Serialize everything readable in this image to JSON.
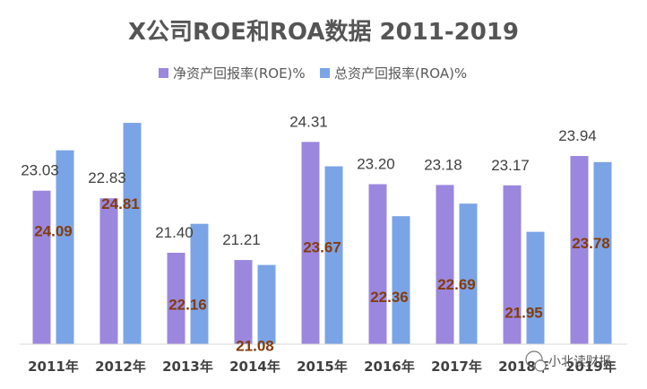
{
  "chart_data": {
    "type": "bar",
    "title": "X公司ROE和ROA数据 2011-2019",
    "categories": [
      "2011年",
      "2012年",
      "2013年",
      "2014年",
      "2015年",
      "2016年",
      "2017年",
      "2018年",
      "2019年"
    ],
    "series": [
      {
        "name": "净资产回报率(ROE)%",
        "color": "#9b87de",
        "values": [
          23.03,
          22.83,
          21.4,
          21.21,
          24.31,
          23.2,
          23.18,
          23.17,
          23.94
        ],
        "labels": [
          "23.03",
          "22.83",
          "21.40",
          "21.21",
          "24.31",
          "23.20",
          "23.18",
          "23.17",
          "23.94"
        ]
      },
      {
        "name": "总资产回报率(ROA)%",
        "color": "#7ba4e6",
        "values": [
          24.09,
          24.81,
          22.16,
          21.08,
          23.67,
          22.36,
          22.69,
          21.95,
          23.78
        ],
        "labels": [
          "24.09",
          "24.81",
          "22.16",
          "21.08",
          "23.67",
          "22.36",
          "22.69",
          "21.95",
          "23.78"
        ]
      }
    ],
    "xlabel": "",
    "ylabel": "",
    "ylim": [
      19.0,
      25.4
    ],
    "grid": false,
    "legend": "top-center"
  },
  "watermark": "小北读财报"
}
